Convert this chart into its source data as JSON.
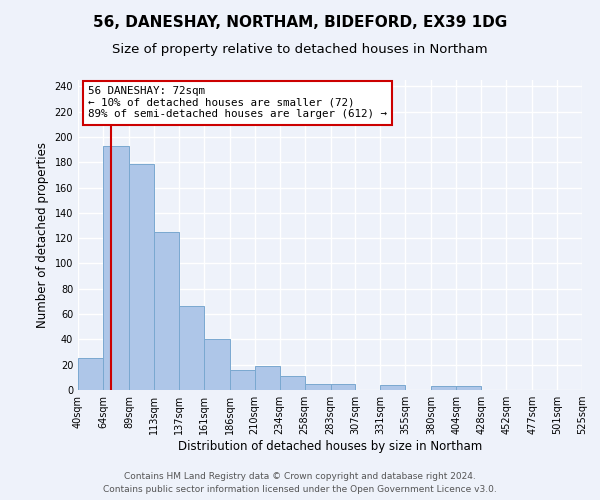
{
  "title": "56, DANESHAY, NORTHAM, BIDEFORD, EX39 1DG",
  "subtitle": "Size of property relative to detached houses in Northam",
  "xlabel": "Distribution of detached houses by size in Northam",
  "ylabel": "Number of detached properties",
  "bin_edges": [
    40,
    64,
    89,
    113,
    137,
    161,
    186,
    210,
    234,
    258,
    283,
    307,
    331,
    355,
    380,
    404,
    428,
    452,
    477,
    501,
    525
  ],
  "bar_heights": [
    25,
    193,
    179,
    125,
    66,
    40,
    16,
    19,
    11,
    5,
    5,
    0,
    4,
    0,
    3,
    3,
    0,
    0,
    0,
    0
  ],
  "bar_color": "#aec6e8",
  "bar_edge_color": "#7aa8d0",
  "property_line_x": 72,
  "property_line_color": "#cc0000",
  "annotation_title": "56 DANESHAY: 72sqm",
  "annotation_line1": "← 10% of detached houses are smaller (72)",
  "annotation_line2": "89% of semi-detached houses are larger (612) →",
  "annotation_box_color": "#ffffff",
  "annotation_box_edge_color": "#cc0000",
  "ylim": [
    0,
    245
  ],
  "yticks": [
    0,
    20,
    40,
    60,
    80,
    100,
    120,
    140,
    160,
    180,
    200,
    220,
    240
  ],
  "tick_labels": [
    "40sqm",
    "64sqm",
    "89sqm",
    "113sqm",
    "137sqm",
    "161sqm",
    "186sqm",
    "210sqm",
    "234sqm",
    "258sqm",
    "283sqm",
    "307sqm",
    "331sqm",
    "355sqm",
    "380sqm",
    "404sqm",
    "428sqm",
    "452sqm",
    "477sqm",
    "501sqm",
    "525sqm"
  ],
  "footer_line1": "Contains HM Land Registry data © Crown copyright and database right 2024.",
  "footer_line2": "Contains public sector information licensed under the Open Government Licence v3.0.",
  "background_color": "#eef2fa",
  "plot_background_color": "#eef2fa",
  "grid_color": "#ffffff",
  "title_fontsize": 11,
  "subtitle_fontsize": 9.5,
  "axis_label_fontsize": 8.5,
  "tick_fontsize": 7,
  "footer_fontsize": 6.5
}
